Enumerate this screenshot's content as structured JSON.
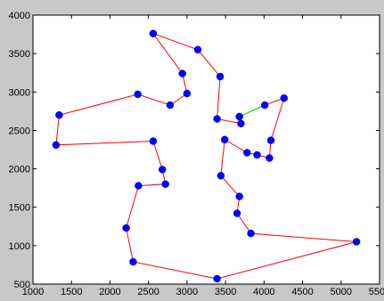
{
  "chart_data": {
    "type": "line",
    "title": "",
    "xlabel": "",
    "ylabel": "",
    "xlim": [
      1000,
      5500
    ],
    "ylim": [
      500,
      4000
    ],
    "x_ticks": [
      1000,
      1500,
      2000,
      2500,
      3000,
      3500,
      4000,
      4500,
      5000,
      5500
    ],
    "y_ticks": [
      500,
      1000,
      1500,
      2000,
      2500,
      3000,
      3500,
      4000
    ],
    "x_tick_labels": [
      "1000",
      "1500",
      "2000",
      "2500",
      "3000",
      "3500",
      "4000",
      "4500",
      "5000",
      "5500"
    ],
    "y_tick_labels": [
      "500",
      "1000",
      "1500",
      "2000",
      "2500",
      "3000",
      "3500",
      "4000"
    ],
    "grid": false,
    "series": [
      {
        "role": "tour",
        "color": "#ff0000",
        "closed": false,
        "x": [
          4010,
          4260,
          4090,
          4070,
          3910,
          3780,
          3490,
          3440,
          3680,
          3650,
          3830,
          5200,
          3390,
          2300,
          2210,
          2370,
          2720,
          2680,
          2560,
          1300,
          1340,
          2360,
          2780,
          3000,
          2940,
          2560,
          3140,
          3430,
          3390,
          3700,
          3680
        ],
        "y": [
          2830,
          2920,
          2370,
          2140,
          2180,
          2210,
          2380,
          1910,
          1640,
          1420,
          1160,
          1050,
          570,
          790,
          1230,
          1780,
          1800,
          1990,
          2360,
          2310,
          2700,
          2970,
          2830,
          2980,
          3240,
          3760,
          3550,
          3200,
          2650,
          2590,
          2680
        ]
      },
      {
        "role": "link",
        "color": "#00cc00",
        "x": [
          3680,
          4010
        ],
        "y": [
          2680,
          2830
        ]
      }
    ],
    "marker_color": "#0000ff",
    "background": "#ffffff"
  }
}
